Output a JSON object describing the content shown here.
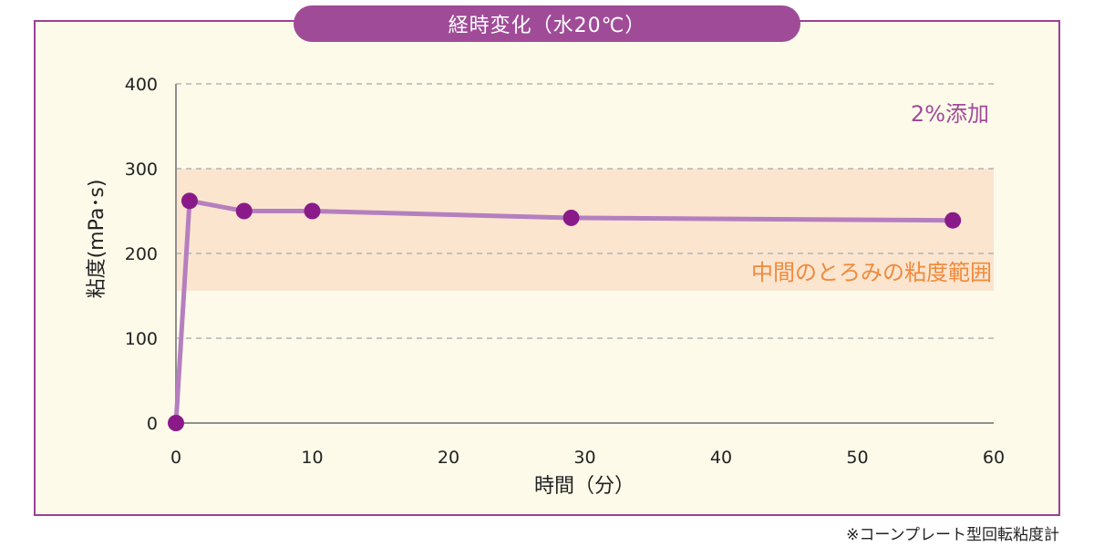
{
  "chart_data": {
    "type": "line",
    "title": "経時変化（水20℃）",
    "xlabel": "時間（分）",
    "ylabel": "粘度(mPa･s)",
    "xlim": [
      0,
      60
    ],
    "ylim": [
      0,
      400
    ],
    "xticks": [
      0,
      10,
      20,
      30,
      40,
      50,
      60
    ],
    "yticks": [
      0,
      100,
      200,
      300,
      400
    ],
    "grid": "horizontal dashed",
    "series": [
      {
        "name": "2%添加",
        "color": "#b57fbf",
        "marker_color": "#8a1a8a",
        "x": [
          0,
          1,
          5,
          10,
          29,
          57
        ],
        "y": [
          0,
          262,
          250,
          250,
          242,
          239
        ]
      }
    ],
    "band": {
      "label": "中間のとろみの粘度範囲",
      "range": [
        156,
        300
      ],
      "color": "#fbe5cf",
      "label_color": "#f08a3c"
    }
  },
  "footnote": "※コーンプレート型回転粘度計"
}
